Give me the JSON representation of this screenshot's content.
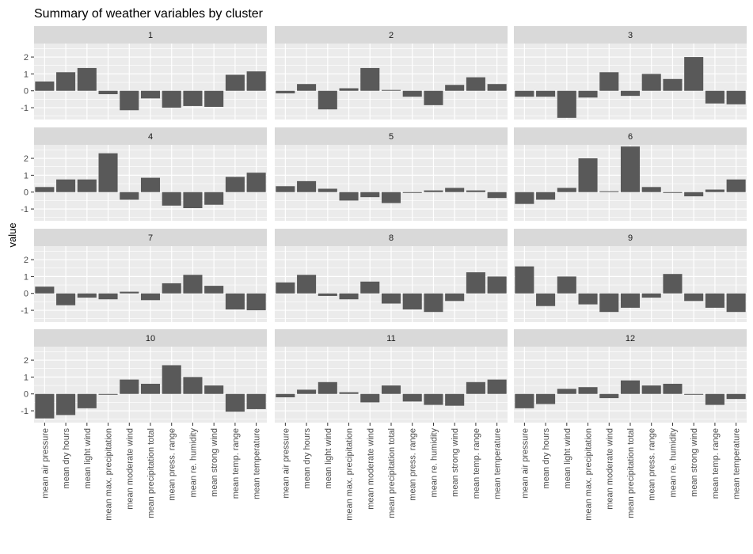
{
  "chart_data": {
    "type": "bar",
    "title": "Summary of weather variables by cluster",
    "xlabel": "",
    "ylabel": "value",
    "ylim": [
      -1.7,
      2.8
    ],
    "yticks": [
      -1,
      0,
      1,
      2
    ],
    "ytick_labels": [
      "-1",
      "0",
      "1",
      "2"
    ],
    "categories": [
      "mean air pressure",
      "mean dry hours",
      "mean light wind",
      "mean max. precipitation",
      "mean moderate wind",
      "mean precipitation total",
      "mean press. range",
      "mean re. humidity",
      "mean strong wind",
      "mean temp. range",
      "mean temperature"
    ],
    "bar_color": "#595959",
    "panel_background": "#ebebeb",
    "strip_background": "#d9d9d9",
    "grid_color": "#ffffff",
    "panels": [
      {
        "label": "1",
        "values": [
          0.55,
          1.1,
          1.35,
          -0.2,
          -1.15,
          -0.45,
          -1.0,
          -0.9,
          -0.95,
          0.95,
          1.15
        ]
      },
      {
        "label": "2",
        "values": [
          -0.15,
          0.4,
          -1.1,
          0.15,
          1.35,
          0.05,
          -0.35,
          -0.85,
          0.35,
          0.8,
          0.4
        ]
      },
      {
        "label": "3",
        "values": [
          -0.35,
          -0.35,
          -1.6,
          -0.4,
          1.1,
          -0.3,
          1.0,
          0.7,
          2.0,
          -0.75,
          -0.8
        ]
      },
      {
        "label": "4",
        "values": [
          0.3,
          0.75,
          0.75,
          2.3,
          -0.45,
          0.85,
          -0.8,
          -0.95,
          -0.75,
          0.9,
          1.15
        ]
      },
      {
        "label": "5",
        "values": [
          0.35,
          0.65,
          0.2,
          -0.5,
          -0.3,
          -0.65,
          -0.05,
          0.1,
          0.25,
          0.1,
          -0.35
        ]
      },
      {
        "label": "6",
        "values": [
          -0.7,
          -0.45,
          0.25,
          2.0,
          0.05,
          2.7,
          0.3,
          -0.05,
          -0.25,
          0.15,
          0.75
        ]
      },
      {
        "label": "7",
        "values": [
          0.4,
          -0.7,
          -0.25,
          -0.35,
          0.1,
          -0.4,
          0.6,
          1.1,
          0.45,
          -0.95,
          -1.0
        ]
      },
      {
        "label": "8",
        "values": [
          0.65,
          1.1,
          -0.15,
          -0.35,
          0.7,
          -0.6,
          -0.95,
          -1.1,
          -0.45,
          1.25,
          1.0
        ]
      },
      {
        "label": "9",
        "values": [
          1.6,
          -0.75,
          1.0,
          -0.65,
          -1.1,
          -0.85,
          -0.25,
          1.15,
          -0.45,
          -0.85,
          -1.1
        ]
      },
      {
        "label": "10",
        "values": [
          -1.45,
          -1.25,
          -0.85,
          -0.05,
          0.85,
          0.6,
          1.7,
          1.0,
          0.5,
          -1.05,
          -0.9
        ]
      },
      {
        "label": "11",
        "values": [
          -0.2,
          0.25,
          0.7,
          0.1,
          -0.5,
          0.5,
          -0.45,
          -0.65,
          -0.7,
          0.7,
          0.85
        ]
      },
      {
        "label": "12",
        "values": [
          -0.85,
          -0.6,
          0.3,
          0.4,
          -0.25,
          0.8,
          0.5,
          0.6,
          -0.05,
          -0.65,
          -0.3
        ]
      }
    ]
  }
}
